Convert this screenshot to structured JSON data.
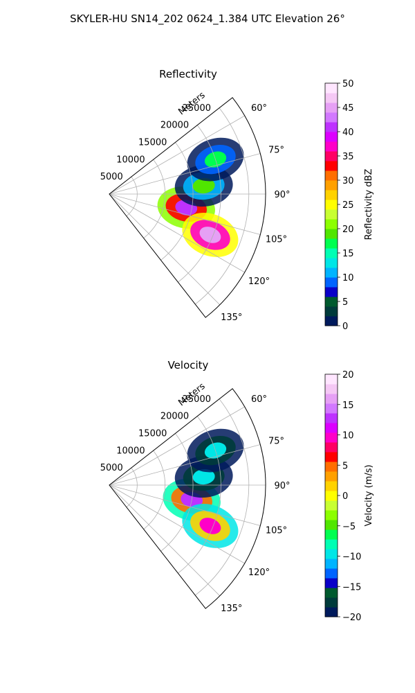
{
  "suptitle": "SKYLER-HU  SN14_202  0624_1.384 UTC Elevation 26°",
  "range_label": "Meters",
  "range_ticks": [
    "5000",
    "10000",
    "15000",
    "20000",
    "25000"
  ],
  "azimuth_ticks": [
    "60°",
    "75°",
    "90°",
    "105°",
    "120°",
    "135°"
  ],
  "chart_data": [
    {
      "type": "polar-sector",
      "title": "Reflectivity",
      "range_label": "Meters",
      "range_ticks": [
        5000,
        10000,
        15000,
        20000,
        25000
      ],
      "range_max": 28000,
      "azimuth_ticks": [
        60,
        75,
        90,
        105,
        120,
        135
      ],
      "azimuth_extent": [
        52,
        142
      ],
      "grid": true,
      "colorbar": {
        "label": "Reflectivity dBZ",
        "range": [
          0,
          50
        ],
        "ticks": [
          "0",
          "5",
          "10",
          "15",
          "20",
          "25",
          "30",
          "35",
          "40",
          "45",
          "50"
        ],
        "colors": [
          "#001a5c",
          "#003b3b",
          "#005a2e",
          "#0a00c8",
          "#0064ff",
          "#00b4ff",
          "#00e6e6",
          "#00ffb4",
          "#00ff50",
          "#50e600",
          "#8cff00",
          "#c8ff32",
          "#ffff00",
          "#ffd200",
          "#ffa000",
          "#ff6e00",
          "#ff0000",
          "#ff0064",
          "#ff00c8",
          "#dc00ff",
          "#be32ff",
          "#d278ff",
          "#e6a0f5",
          "#f5c8f5",
          "#ffe6ff"
        ]
      },
      "echo_regions": [
        {
          "az": 100,
          "r": 14000,
          "value": 40
        },
        {
          "az": 112,
          "r": 19500,
          "value": 44
        },
        {
          "az": 85,
          "r": 17000,
          "value": 18
        },
        {
          "az": 72,
          "r": 20000,
          "value": 16
        }
      ]
    },
    {
      "type": "polar-sector",
      "title": "Velocity",
      "range_label": "Meters",
      "range_ticks": [
        5000,
        10000,
        15000,
        20000,
        25000
      ],
      "range_max": 28000,
      "azimuth_ticks": [
        60,
        75,
        90,
        105,
        120,
        135
      ],
      "azimuth_extent": [
        52,
        142
      ],
      "grid": true,
      "colorbar": {
        "label": "Velocity (m/s)",
        "range": [
          -20,
          20
        ],
        "ticks": [
          "−20",
          "−15",
          "−10",
          "−5",
          "0",
          "5",
          "10",
          "15",
          "20"
        ],
        "colors": [
          "#001a5c",
          "#003b3b",
          "#005a2e",
          "#0a00c8",
          "#0064ff",
          "#00b4ff",
          "#00e6e6",
          "#00ffb4",
          "#00ff50",
          "#50e600",
          "#8cff00",
          "#c8ff32",
          "#ffff00",
          "#ffd200",
          "#ffa000",
          "#ff6e00",
          "#ff0000",
          "#ff0064",
          "#ff00c8",
          "#dc00ff",
          "#be32ff",
          "#d278ff",
          "#e6a0f5",
          "#f5c8f5",
          "#ffe6ff"
        ]
      },
      "echo_regions": [
        {
          "az": 100,
          "r": 15000,
          "value": 12
        },
        {
          "az": 112,
          "r": 19500,
          "value": 10
        },
        {
          "az": 85,
          "r": 17000,
          "value": -10
        },
        {
          "az": 72,
          "r": 20000,
          "value": -9
        }
      ]
    }
  ]
}
